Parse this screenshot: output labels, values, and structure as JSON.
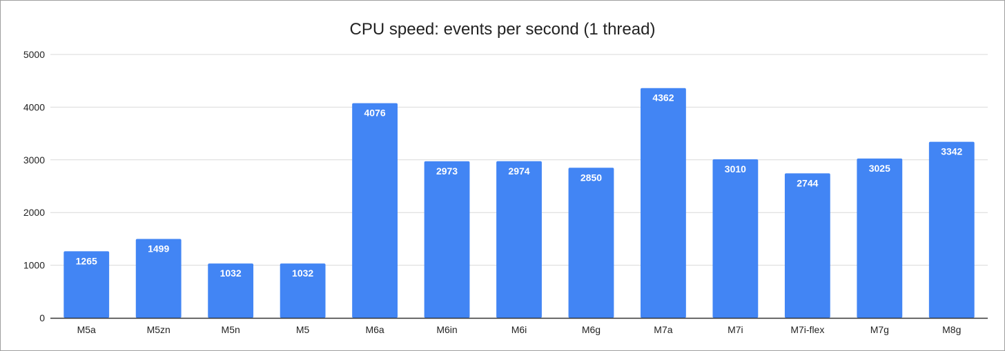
{
  "chart_data": {
    "type": "bar",
    "title": "CPU speed: events per second (1 thread)",
    "xlabel": "",
    "ylabel": "",
    "categories": [
      "M5a",
      "M5zn",
      "M5n",
      "M5",
      "M6a",
      "M6in",
      "M6i",
      "M6g",
      "M7a",
      "M7i",
      "M7i-flex",
      "M7g",
      "M8g"
    ],
    "values": [
      1265,
      1499,
      1032,
      1032,
      4076,
      2973,
      2974,
      2850,
      4362,
      3010,
      2744,
      3025,
      3342
    ],
    "ylim": [
      0,
      5000
    ],
    "yticks": [
      0,
      1000,
      2000,
      3000,
      4000,
      5000
    ],
    "grid": true,
    "legend": "none",
    "data_labels": true,
    "colors": {
      "bar": "#4285f4",
      "grid": "#d9d9d9",
      "axis": "#333333",
      "text": "#222222",
      "label": "#ffffff"
    }
  }
}
